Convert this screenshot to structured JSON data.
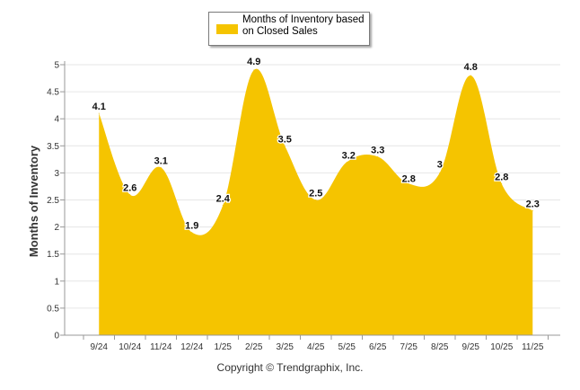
{
  "chart_data": {
    "type": "area",
    "categories": [
      "9/24",
      "10/24",
      "11/24",
      "12/24",
      "1/25",
      "2/25",
      "3/25",
      "4/25",
      "5/25",
      "6/25",
      "7/25",
      "8/25",
      "9/25",
      "10/25",
      "11/25"
    ],
    "series": [
      {
        "name": "Months of Inventory based on Closed Sales",
        "values": [
          4.1,
          2.6,
          3.1,
          1.9,
          2.4,
          4.9,
          3.5,
          2.5,
          3.2,
          3.3,
          2.8,
          3,
          4.8,
          2.8,
          2.3
        ]
      }
    ],
    "ylabel": "Months of Inventory",
    "ylim": [
      0,
      5
    ],
    "yticks": [
      "0",
      "0.5",
      "1",
      "1.5",
      "2",
      "2.5",
      "3",
      "3.5",
      "4",
      "4.5",
      "5"
    ],
    "grid": true,
    "legend_placement": "top-center",
    "fill_color": "#F5C400",
    "data_labels": [
      "4.1",
      "2.6",
      "3.1",
      "1.9",
      "2.4",
      "4.9",
      "3.5",
      "2.5",
      "3.2",
      "3.3",
      "2.8",
      "3",
      "4.8",
      "2.8",
      "2.3"
    ]
  },
  "legend": {
    "label_line1": "Months of Inventory based",
    "label_line2": "on Closed Sales"
  },
  "footer": {
    "copyright": "Copyright © Trendgraphix, Inc."
  }
}
